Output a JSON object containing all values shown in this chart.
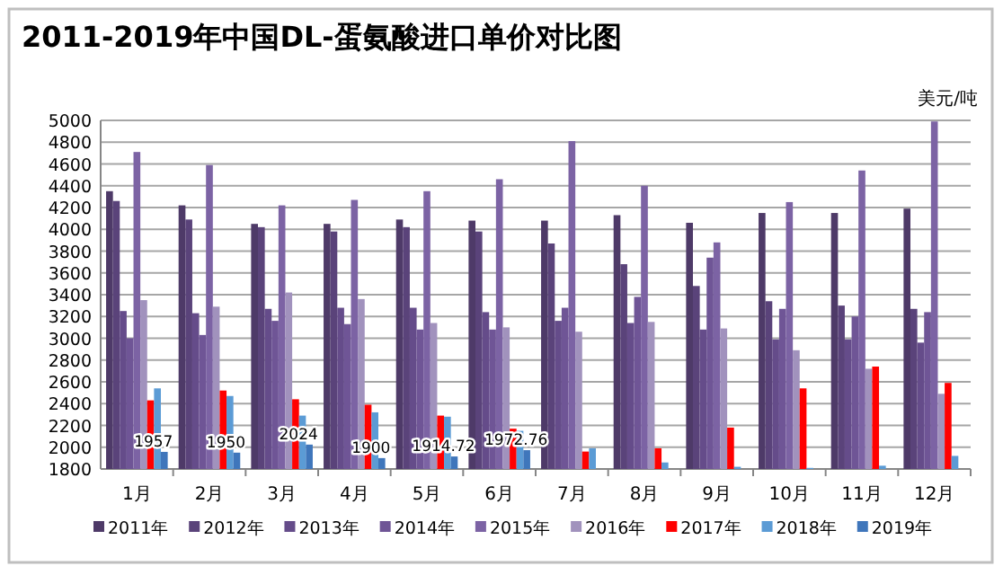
{
  "chart_data": {
    "type": "bar",
    "title": "2011-2019年中国DL-蛋氨酸进口单价对比图",
    "ylabel": "美元/吨",
    "categories": [
      "1月",
      "2月",
      "3月",
      "4月",
      "5月",
      "6月",
      "7月",
      "8月",
      "9月",
      "10月",
      "11月",
      "12月"
    ],
    "series": [
      {
        "name": "2011年",
        "color": "#4e3a68",
        "values": [
          4350,
          4220,
          4050,
          4050,
          4090,
          4080,
          4080,
          4130,
          4060,
          4150,
          4150,
          4190
        ]
      },
      {
        "name": "2012年",
        "color": "#5a437a",
        "values": [
          4260,
          4090,
          4020,
          3980,
          4020,
          3980,
          3870,
          3680,
          3480,
          3340,
          3300,
          3270
        ]
      },
      {
        "name": "2013年",
        "color": "#654c8a",
        "values": [
          3250,
          3230,
          3270,
          3280,
          3280,
          3240,
          3160,
          3140,
          3080,
          2990,
          2990,
          2960
        ]
      },
      {
        "name": "2014年",
        "color": "#6f5596",
        "values": [
          3000,
          3030,
          3160,
          3130,
          3080,
          3080,
          3280,
          3380,
          3740,
          3270,
          3200,
          3240
        ]
      },
      {
        "name": "2015年",
        "color": "#7c63a4",
        "values": [
          4710,
          4590,
          4220,
          4270,
          4350,
          4460,
          4810,
          4400,
          3880,
          4250,
          4540,
          4990
        ]
      },
      {
        "name": "2016年",
        "color": "#a192bd",
        "values": [
          3350,
          3290,
          3420,
          3360,
          3140,
          3100,
          3060,
          3150,
          3090,
          2890,
          2720,
          2490
        ]
      },
      {
        "name": "2017年",
        "color": "#ff0000",
        "values": [
          2430,
          2520,
          2440,
          2390,
          2290,
          2170,
          1960,
          1990,
          2180,
          2540,
          2740,
          2590
        ]
      },
      {
        "name": "2018年",
        "color": "#5b9bd5",
        "values": [
          2540,
          2470,
          2290,
          2320,
          2280,
          2150,
          1990,
          1860,
          1820,
          1810,
          1830,
          1920
        ]
      },
      {
        "name": "2019年",
        "color": "#3f76bb",
        "values": [
          1957,
          1950,
          2024,
          1900,
          1914.72,
          1972.76,
          null,
          null,
          null,
          null,
          null,
          null
        ],
        "value_labels": [
          "1957",
          "1950",
          "2024",
          "1900",
          "1914.72",
          "1972.76",
          null,
          null,
          null,
          null,
          null,
          null
        ]
      }
    ],
    "ylim": [
      1800,
      5000
    ],
    "yticks": [
      1800,
      2000,
      2200,
      2400,
      2600,
      2800,
      3000,
      3200,
      3400,
      3600,
      3800,
      4000,
      4200,
      4400,
      4600,
      4800,
      5000
    ],
    "grid": "y",
    "legend": "bottom"
  }
}
